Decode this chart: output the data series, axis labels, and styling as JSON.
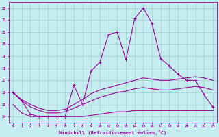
{
  "xlabel": "Windchill (Refroidissement éolien,°C)",
  "xlim": [
    -0.5,
    23.5
  ],
  "ylim": [
    13.5,
    23.5
  ],
  "xticks": [
    0,
    1,
    2,
    3,
    4,
    5,
    6,
    7,
    8,
    9,
    10,
    11,
    12,
    13,
    14,
    15,
    16,
    17,
    18,
    19,
    20,
    21,
    22,
    23
  ],
  "yticks": [
    14,
    15,
    16,
    17,
    18,
    19,
    20,
    21,
    22,
    23
  ],
  "bg_color": "#c5ecee",
  "grid_color": "#a0cdd0",
  "line_color": "#990099",
  "curve1_x": [
    0,
    1,
    2,
    3,
    4,
    5,
    6,
    7,
    8,
    9,
    10,
    11,
    12,
    13,
    14,
    15,
    16,
    17,
    18,
    19,
    20,
    21,
    22,
    23
  ],
  "curve1_y": [
    16.0,
    15.3,
    14.2,
    14.0,
    14.0,
    14.0,
    14.0,
    16.6,
    15.0,
    17.8,
    18.5,
    20.8,
    21.0,
    18.7,
    22.1,
    23.0,
    21.7,
    18.8,
    18.2,
    17.5,
    17.0,
    17.0,
    15.8,
    14.8
  ],
  "curve2_x": [
    0,
    1,
    2,
    3,
    4,
    5,
    6,
    7,
    8,
    9,
    10,
    11,
    12,
    13,
    14,
    15,
    16,
    17,
    18,
    19,
    20,
    21,
    22,
    23
  ],
  "curve2_y": [
    16.0,
    15.4,
    15.0,
    14.7,
    14.5,
    14.5,
    14.6,
    15.0,
    15.4,
    15.9,
    16.2,
    16.4,
    16.6,
    16.8,
    17.0,
    17.2,
    17.1,
    17.0,
    17.0,
    17.1,
    17.2,
    17.3,
    17.2,
    17.0
  ],
  "curve3_x": [
    0,
    1,
    2,
    3,
    4,
    5,
    6,
    7,
    8,
    9,
    10,
    11,
    12,
    13,
    14,
    15,
    16,
    17,
    18,
    19,
    20,
    21,
    22,
    23
  ],
  "curve3_y": [
    16.0,
    15.3,
    14.8,
    14.5,
    14.3,
    14.3,
    14.4,
    14.7,
    15.0,
    15.3,
    15.6,
    15.8,
    16.0,
    16.1,
    16.3,
    16.4,
    16.3,
    16.2,
    16.2,
    16.3,
    16.4,
    16.5,
    16.4,
    16.2
  ],
  "curve4_x": [
    0,
    1,
    2,
    3,
    4,
    5,
    6,
    7,
    8,
    9,
    10,
    11,
    12,
    13,
    14,
    15,
    16,
    17,
    18,
    19,
    20,
    21,
    22,
    23
  ],
  "curve4_y": [
    15.0,
    14.3,
    14.0,
    14.0,
    14.0,
    14.0,
    14.0,
    14.0,
    14.0,
    14.1,
    14.2,
    14.3,
    14.4,
    14.4,
    14.5,
    14.5,
    14.5,
    14.5,
    14.5,
    14.5,
    14.5,
    14.5,
    14.5,
    14.5
  ]
}
